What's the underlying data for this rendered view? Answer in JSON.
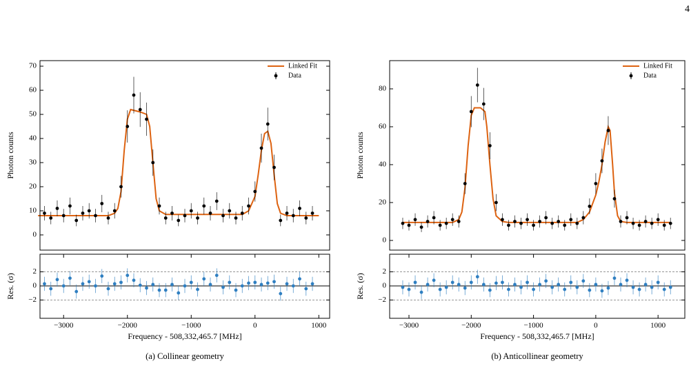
{
  "page_number": "4",
  "captions": [
    "(a) Collinear geometry",
    "(b) Anticollinear geometry"
  ],
  "chart_data": [
    {
      "type": "scatter",
      "ylabel": "Photon counts",
      "legend": "upper right",
      "xlim": [
        -3370,
        1170
      ],
      "ylim": [
        -6.3,
        72.3
      ],
      "yticks": [
        0,
        10,
        20,
        30,
        40,
        50,
        60,
        70
      ],
      "series": [
        {
          "name": "Linked Fit",
          "kind": "line",
          "color": "#dd6210",
          "x": [
            -3400,
            -2300,
            -2200,
            -2150,
            -2100,
            -2050,
            -2000,
            -1950,
            -1800,
            -1700,
            -1650,
            -1600,
            -1550,
            -1500,
            -1400,
            -200,
            -100,
            0,
            50,
            100,
            150,
            200,
            250,
            300,
            350,
            400,
            500,
            1000
          ],
          "values": [
            8,
            8,
            9,
            11,
            18,
            35,
            48,
            52,
            51,
            50,
            45,
            30,
            15,
            10,
            8.5,
            8.5,
            10,
            16,
            25,
            35,
            42,
            43,
            38,
            25,
            13,
            9,
            8,
            8
          ]
        },
        {
          "name": "Data",
          "kind": "points",
          "color": "#000000",
          "x": [
            -3300,
            -3200,
            -3100,
            -3000,
            -2900,
            -2800,
            -2700,
            -2600,
            -2500,
            -2400,
            -2300,
            -2200,
            -2100,
            -2000,
            -1900,
            -1800,
            -1700,
            -1600,
            -1500,
            -1400,
            -1300,
            -1200,
            -1100,
            -1000,
            -900,
            -800,
            -700,
            -600,
            -500,
            -400,
            -300,
            -200,
            -100,
            0,
            100,
            200,
            300,
            400,
            500,
            600,
            700,
            800,
            900
          ],
          "values": [
            9,
            7,
            11,
            8,
            12,
            6,
            9,
            10,
            8,
            13,
            7,
            10,
            20,
            45,
            58,
            52,
            48,
            30,
            12,
            7,
            9,
            6,
            8,
            10,
            7,
            12,
            9,
            14,
            8,
            10,
            7,
            9,
            12,
            18,
            36,
            46,
            28,
            6,
            9,
            8,
            11,
            7,
            9
          ],
          "errors": [
            3,
            2.6,
            3.3,
            2.8,
            3.5,
            2.4,
            3,
            3.2,
            2.8,
            3.6,
            2.6,
            3.2,
            4.5,
            6.7,
            7.6,
            7.2,
            6.9,
            5.5,
            3.5,
            2.6,
            3,
            2.4,
            2.8,
            3.2,
            2.6,
            3.5,
            3,
            3.7,
            2.8,
            3.2,
            2.6,
            3,
            3.5,
            4.2,
            6,
            6.8,
            5.3,
            2.4,
            3,
            2.8,
            3.3,
            2.6,
            3
          ]
        }
      ]
    },
    {
      "type": "scatter",
      "ylabel": "Res. (σ)",
      "xlabel": "Frequency - 508,332,465.7 [MHz]",
      "xlim": [
        -3370,
        1170
      ],
      "ylim": [
        -4.6,
        4.5
      ],
      "xticks": [
        {
          "value": -3000,
          "label": "−3000"
        },
        {
          "value": -2000,
          "label": "−2000"
        },
        {
          "value": -1000,
          "label": "−1000"
        },
        0,
        1000
      ],
      "yticks": [
        2,
        0,
        {
          "value": -2,
          "label": "−2"
        }
      ],
      "hlines": [
        -2,
        0,
        2
      ],
      "series": [
        {
          "kind": "points",
          "color": "#2f7fc1",
          "error": 1,
          "x": [
            -3300,
            -3200,
            -3100,
            -3000,
            -2900,
            -2800,
            -2700,
            -2600,
            -2500,
            -2400,
            -2300,
            -2200,
            -2100,
            -2000,
            -1900,
            -1800,
            -1700,
            -1600,
            -1500,
            -1400,
            -1300,
            -1200,
            -1100,
            -1000,
            -900,
            -800,
            -700,
            -600,
            -500,
            -400,
            -300,
            -200,
            -100,
            0,
            100,
            200,
            300,
            400,
            500,
            600,
            700,
            800,
            900
          ],
          "values": [
            0.3,
            -0.4,
            0.9,
            0,
            1.1,
            -0.8,
            0.3,
            0.6,
            0,
            1.4,
            -0.4,
            0.3,
            0.5,
            1.5,
            0.8,
            0.1,
            -0.3,
            0.2,
            -0.6,
            -0.6,
            0.2,
            -1,
            0,
            0.5,
            -0.5,
            1,
            0.2,
            1.5,
            -0.2,
            0.5,
            -0.6,
            0,
            0.4,
            0.5,
            0.2,
            0.4,
            0.6,
            -1.1,
            0.3,
            0,
            1,
            -0.4,
            0.3
          ]
        }
      ]
    },
    {
      "type": "scatter",
      "ylabel": "Photon counts",
      "legend": "upper right",
      "xlim": [
        -3310,
        1430
      ],
      "ylim": [
        -5.1,
        94.9
      ],
      "yticks": [
        0,
        20,
        40,
        60,
        80
      ],
      "series": [
        {
          "name": "Linked Fit",
          "kind": "line",
          "color": "#dd6210",
          "x": [
            -3100,
            -2300,
            -2200,
            -2150,
            -2100,
            -2050,
            -2000,
            -1950,
            -1850,
            -1780,
            -1750,
            -1700,
            -1650,
            -1600,
            -1500,
            -1400,
            -300,
            -200,
            -100,
            0,
            50,
            100,
            150,
            200,
            230,
            270,
            300,
            350,
            400,
            500,
            1200
          ],
          "values": [
            9.5,
            9.5,
            11,
            15,
            28,
            50,
            66,
            70,
            70,
            68,
            60,
            40,
            22,
            13,
            10,
            9.5,
            9.5,
            11,
            15,
            24,
            31,
            40,
            52,
            60,
            58,
            40,
            25,
            13,
            10,
            9.5,
            9.5
          ]
        },
        {
          "name": "Data",
          "kind": "points",
          "color": "#000000",
          "x": [
            -3100,
            -3000,
            -2900,
            -2800,
            -2700,
            -2600,
            -2500,
            -2400,
            -2300,
            -2200,
            -2100,
            -2000,
            -1900,
            -1800,
            -1700,
            -1600,
            -1500,
            -1400,
            -1300,
            -1200,
            -1100,
            -1000,
            -900,
            -800,
            -700,
            -600,
            -500,
            -400,
            -300,
            -200,
            -100,
            0,
            100,
            200,
            300,
            400,
            500,
            600,
            700,
            800,
            900,
            1000,
            1100,
            1200
          ],
          "values": [
            9,
            8,
            11,
            7,
            10,
            12,
            8,
            9,
            11,
            10,
            30,
            68,
            82,
            72,
            50,
            20,
            11,
            8,
            10,
            9,
            11,
            8,
            10,
            12,
            9,
            10,
            8,
            11,
            9,
            12,
            18,
            30,
            42,
            58,
            22,
            10,
            12,
            9,
            8,
            10,
            9,
            11,
            8,
            9
          ],
          "errors": [
            3,
            2.8,
            3.3,
            2.6,
            3.2,
            3.5,
            2.8,
            3,
            3.3,
            3.2,
            5.5,
            8.2,
            9.1,
            8.5,
            7.1,
            4.5,
            3.3,
            2.8,
            3.2,
            3,
            3.3,
            2.8,
            3.2,
            3.5,
            3,
            3.2,
            2.8,
            3.3,
            3,
            3.5,
            4.2,
            5.5,
            6.5,
            7.6,
            4.7,
            3.2,
            3.5,
            3,
            2.8,
            3.2,
            3,
            3.3,
            2.8,
            3
          ]
        }
      ]
    },
    {
      "type": "scatter",
      "ylabel": "Res. (σ)",
      "xlabel": "Frequency - 508,332,465.7 [MHz]",
      "xlim": [
        -3310,
        1430
      ],
      "ylim": [
        -4.6,
        4.5
      ],
      "xticks": [
        {
          "value": -3000,
          "label": "−3000"
        },
        {
          "value": -2000,
          "label": "−2000"
        },
        {
          "value": -1000,
          "label": "−1000"
        },
        0,
        1000
      ],
      "yticks": [
        2,
        0,
        {
          "value": -2,
          "label": "−2"
        }
      ],
      "hlines": [
        -2,
        0,
        2
      ],
      "series": [
        {
          "kind": "points",
          "color": "#2f7fc1",
          "error": 1,
          "x": [
            -3100,
            -3000,
            -2900,
            -2800,
            -2700,
            -2600,
            -2500,
            -2400,
            -2300,
            -2200,
            -2100,
            -2000,
            -1900,
            -1800,
            -1700,
            -1600,
            -1500,
            -1400,
            -1300,
            -1200,
            -1100,
            -1000,
            -900,
            -800,
            -700,
            -600,
            -500,
            -400,
            -300,
            -200,
            -100,
            0,
            100,
            200,
            300,
            400,
            500,
            600,
            700,
            800,
            900,
            1000,
            1100,
            1200
          ],
          "values": [
            -0.2,
            -0.5,
            0.5,
            -0.9,
            0.2,
            0.8,
            -0.5,
            -0.2,
            0.5,
            0.2,
            -0.3,
            0.5,
            1.3,
            0.2,
            -0.6,
            0.4,
            0.5,
            -0.5,
            0.2,
            -0.2,
            0.5,
            -0.5,
            0.2,
            0.7,
            -0.2,
            0.2,
            -0.5,
            0.5,
            -0.2,
            0.7,
            -0.6,
            0.2,
            -0.7,
            -0.3,
            1.1,
            0.2,
            0.8,
            -0.2,
            -0.5,
            0.2,
            -0.2,
            0.5,
            -0.5,
            -0.2
          ]
        }
      ]
    }
  ]
}
